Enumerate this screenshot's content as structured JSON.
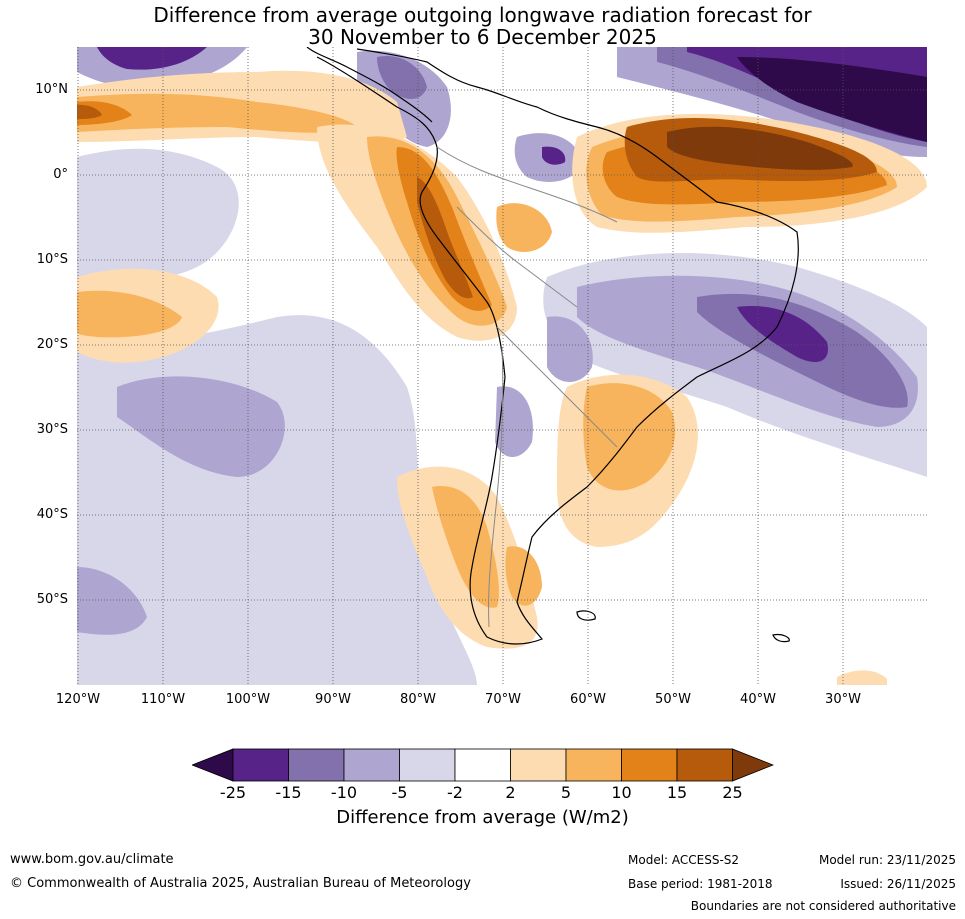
{
  "title": {
    "line1": "Difference from average outgoing longwave radiation forecast for",
    "line2": "30 November to 6 December 2025"
  },
  "map": {
    "lat_labels": [
      "10°N",
      "0°",
      "10°S",
      "20°S",
      "30°S",
      "40°S",
      "50°S"
    ],
    "lon_labels": [
      "120°W",
      "110°W",
      "100°W",
      "90°W",
      "80°W",
      "70°W",
      "60°W",
      "50°W",
      "40°W",
      "30°W"
    ]
  },
  "colorbar": {
    "ticks": [
      "-25",
      "-15",
      "-10",
      "-5",
      "-2",
      "2",
      "5",
      "10",
      "15",
      "25"
    ],
    "colors": [
      "#2e0a4a",
      "#572389",
      "#8271ad",
      "#aea6d0",
      "#d8d7e9",
      "#ffffff",
      "#fddcb2",
      "#f8b45c",
      "#e28219",
      "#b65a0c",
      "#7f3a0b"
    ],
    "label": "Difference from average (W/m2)"
  },
  "footer": {
    "url": "www.bom.gov.au/climate",
    "copyright": "© Commonwealth of Australia 2025, Australian Bureau of Meteorology",
    "model": "Model: ACCESS-S2",
    "base_period": "Base period: 1981-2018",
    "model_run": "Model run: 23/11/2025",
    "issued": "Issued: 26/11/2025",
    "disclaimer": "Boundaries are not considered authoritative"
  }
}
